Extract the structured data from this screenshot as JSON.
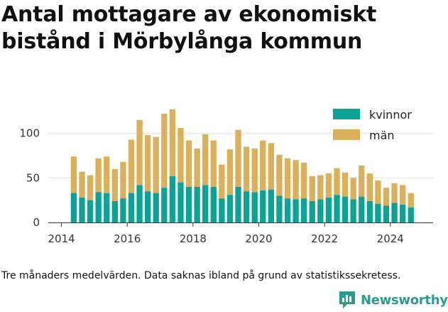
{
  "title": "Antal mottagare av ekonomiskt bistånd i Mörbylånga kommun",
  "note": "Tre månaders medelvärden. Data saknas ibland på grund av statistikssekretess.",
  "brand": {
    "name": "Newsworthy",
    "logo_icon": "newsworthy-bar-logo-icon"
  },
  "colors": {
    "kvinnor": "#0aa396",
    "man": "#dbb05a",
    "grid": "#e2e2e2",
    "brand": "#2e9a8e"
  },
  "chart_data": {
    "type": "bar",
    "stacked": true,
    "title": "Antal mottagare av ekonomiskt bistånd i Mörbylånga kommun",
    "xlabel": "",
    "ylabel": "",
    "ylim": [
      0,
      130
    ],
    "xlim": [
      2013.6,
      2025.3
    ],
    "yticks": [
      0,
      50,
      100
    ],
    "xticks": [
      2014,
      2016,
      2018,
      2020,
      2022,
      2024
    ],
    "grid": true,
    "legend_position": "top-right",
    "x": [
      2014.375,
      2014.625,
      2014.875,
      2015.125,
      2015.375,
      2015.625,
      2015.875,
      2016.125,
      2016.375,
      2016.625,
      2016.875,
      2017.125,
      2017.375,
      2017.625,
      2017.875,
      2018.125,
      2018.375,
      2018.625,
      2018.875,
      2019.125,
      2019.375,
      2019.625,
      2019.875,
      2020.125,
      2020.375,
      2020.625,
      2020.875,
      2021.125,
      2021.375,
      2021.625,
      2021.875,
      2022.125,
      2022.375,
      2022.625,
      2022.875,
      2023.125,
      2023.375,
      2023.625,
      2023.875,
      2024.125,
      2024.375,
      2024.625
    ],
    "series": [
      {
        "name": "kvinnor",
        "values": [
          33,
          28,
          25,
          34,
          33,
          24,
          27,
          33,
          42,
          35,
          33,
          39,
          52,
          45,
          40,
          40,
          42,
          40,
          27,
          31,
          40,
          35,
          34,
          36,
          37,
          30,
          27,
          26,
          27,
          24,
          26,
          28,
          31,
          29,
          26,
          29,
          24,
          21,
          19,
          22,
          20,
          17
        ]
      },
      {
        "name": "män",
        "values": [
          41,
          29,
          28,
          38,
          41,
          36,
          41,
          60,
          73,
          63,
          63,
          83,
          75,
          61,
          52,
          43,
          57,
          52,
          38,
          51,
          64,
          50,
          49,
          56,
          52,
          46,
          45,
          44,
          40,
          28,
          27,
          27,
          30,
          27,
          24,
          35,
          31,
          26,
          20,
          22,
          22,
          16
        ]
      }
    ]
  }
}
